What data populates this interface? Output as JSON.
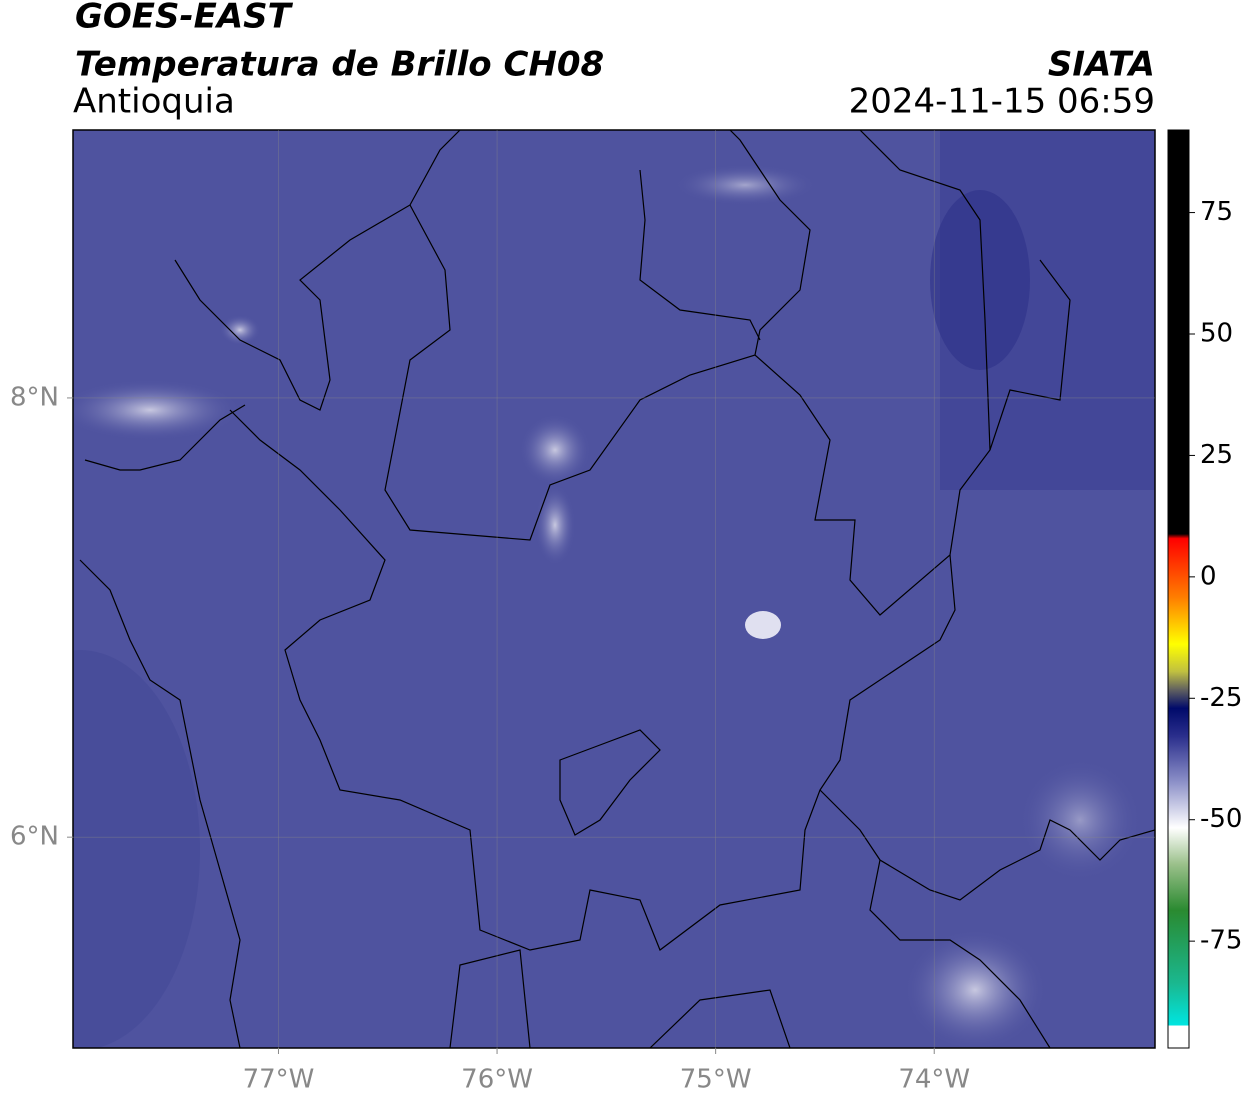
{
  "header": {
    "satellite": "GOES-EAST",
    "product": "Temperatura de Brillo CH08",
    "region": "Antioquia",
    "source": "SIATA",
    "datetime": "2024-11-15 06:59"
  },
  "map": {
    "lonlim": [
      -77.94,
      -72.99
    ],
    "latlim": [
      5.04,
      9.22
    ],
    "xticks": [
      {
        "value": -77,
        "label": "77°W"
      },
      {
        "value": -76,
        "label": "76°W"
      },
      {
        "value": -75,
        "label": "75°W"
      },
      {
        "value": -74,
        "label": "74°W"
      }
    ],
    "yticks": [
      {
        "value": 8,
        "label": "8°N"
      },
      {
        "value": 6,
        "label": "6°N"
      }
    ],
    "grid": true
  },
  "colorbar": {
    "lim": [
      -97,
      92
    ],
    "ticks": [
      75,
      50,
      25,
      0,
      -25,
      -50,
      -75
    ]
  }
}
